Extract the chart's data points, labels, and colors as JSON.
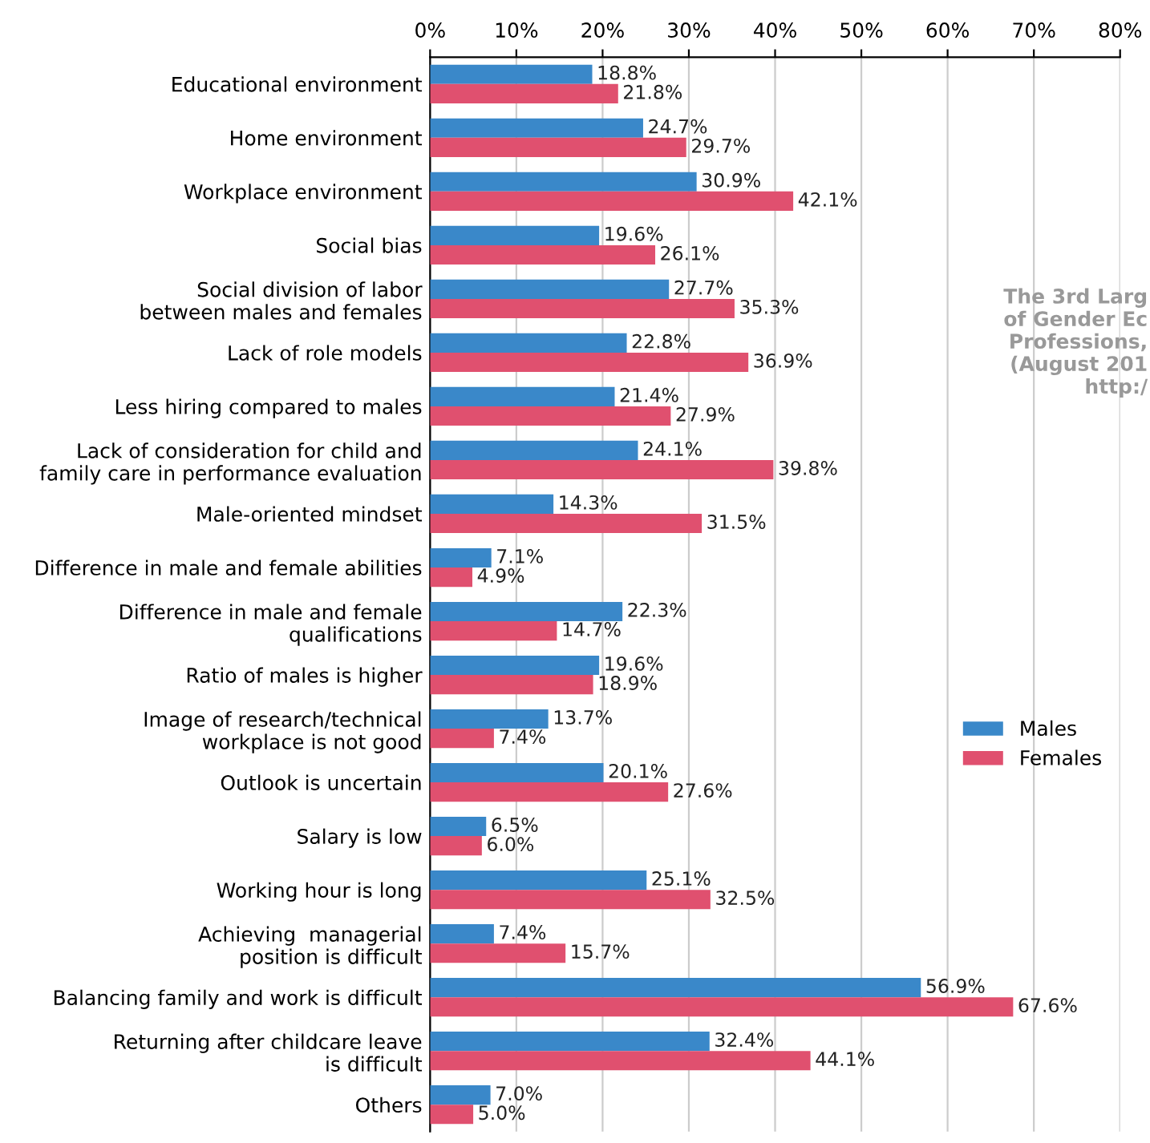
{
  "chart_data": {
    "type": "bar",
    "orientation": "horizontal",
    "categories": [
      "Educational environment",
      "Home environment",
      "Workplace environment",
      "Social bias",
      "Social division of labor\nbetween males and females",
      "Lack of role models",
      "Less hiring compared to males",
      "Lack of consideration for child and\nfamily care in performance evaluation",
      "Male-oriented mindset",
      "Difference in male and female abilities",
      "Difference in male and female\nqualifications",
      "Ratio of males is higher",
      "Image of research/technical\nworkplace is not good",
      "Outlook is uncertain",
      "Salary is low",
      "Working hour is long",
      "Achieving  managerial\nposition is difficult",
      "Balancing family and work is difficult",
      "Returning after childcare leave\nis difficult",
      "Others"
    ],
    "series": [
      {
        "name": "Males",
        "color": "#3a88c9",
        "values": [
          18.8,
          24.7,
          30.9,
          19.6,
          27.7,
          22.8,
          21.4,
          24.1,
          14.3,
          7.1,
          22.3,
          19.6,
          13.7,
          20.1,
          6.5,
          25.1,
          7.4,
          56.9,
          32.4,
          7.0
        ],
        "value_labels": [
          "18.8%",
          "24.7%",
          "30.9%",
          "19.6%",
          "27.7%",
          "22.8%",
          "21.4%",
          "24.1%",
          "14.3%",
          "7.1%",
          "22.3%",
          "19.6%",
          "13.7%",
          "20.1%",
          "6.5%",
          "25.1%",
          "7.4%",
          "56.9%",
          "32.4%",
          "7.0%"
        ]
      },
      {
        "name": "Females",
        "color": "#e0506f",
        "values": [
          21.8,
          29.7,
          42.1,
          26.1,
          35.3,
          36.9,
          27.9,
          39.8,
          31.5,
          4.9,
          14.7,
          18.9,
          7.4,
          27.6,
          6.0,
          32.5,
          15.7,
          67.6,
          44.1,
          5.0
        ],
        "value_labels": [
          "21.8%",
          "29.7%",
          "42.1%",
          "26.1%",
          "35.3%",
          "36.9%",
          "27.9%",
          "39.8%",
          "31.5%",
          "4.9%",
          "14.7%",
          "18.9%",
          "7.4%",
          "27.6%",
          "6.0%",
          "32.5%",
          "15.7%",
          "67.6%",
          "44.1%",
          "5.0%"
        ]
      }
    ],
    "xlim": [
      0,
      80
    ],
    "xticks": [
      {
        "value": 0,
        "label": "0%"
      },
      {
        "value": 10,
        "label": "10%"
      },
      {
        "value": 20,
        "label": "20%"
      },
      {
        "value": 30,
        "label": "30%"
      },
      {
        "value": 40,
        "label": "40%"
      },
      {
        "value": 50,
        "label": "50%"
      },
      {
        "value": 60,
        "label": "60%"
      },
      {
        "value": 70,
        "label": "70%"
      },
      {
        "value": 80,
        "label": "80%"
      }
    ],
    "grid": "x",
    "legend": "right",
    "annotations": [
      "The 3rd Larg\nof Gender Ec\nProfessions,\n(August 201\nhttp:/"
    ]
  }
}
